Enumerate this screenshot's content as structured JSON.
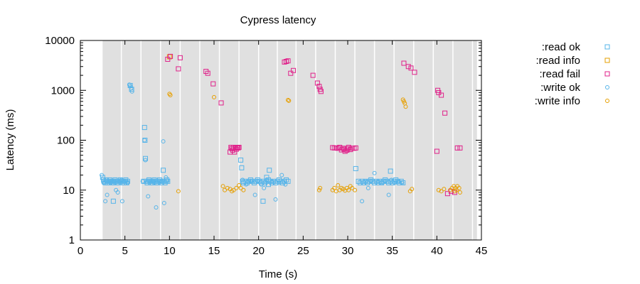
{
  "chart_data": {
    "type": "scatter",
    "title": "Cypress latency",
    "xlabel": "Time (s)",
    "ylabel": "Latency (ms)",
    "xlim": [
      0,
      45
    ],
    "ylim": [
      1,
      10000
    ],
    "yscale": "log",
    "grid": false,
    "legend_position": "outside-right",
    "x_ticks": [
      "0",
      "5",
      "10",
      "15",
      "20",
      "25",
      "30",
      "35",
      "40",
      "45"
    ],
    "y_ticks": [
      "1",
      "10",
      "100",
      "1000",
      "10000"
    ],
    "colors": {
      "ok": "#56b4e9",
      "info": "#e69f00",
      "fail": "#e0218a",
      "band": "#e0e0e0",
      "band_separator": "#ffffff"
    },
    "nemesis_windows": [
      [
        2.5,
        44.5
      ]
    ],
    "nemesis_separators": [
      4.6,
      6.8,
      9.0,
      11.2,
      13.4,
      15.6,
      17.8,
      20.0,
      22.1,
      24.2,
      26.4,
      28.6,
      30.8,
      33.0,
      35.2,
      37.4,
      39.6,
      41.8,
      44.0
    ],
    "series": [
      {
        "name": ":read ok",
        "marker": "square",
        "color": "#56b4e9",
        "points": [
          [
            2.5,
            18
          ],
          [
            2.6,
            16
          ],
          [
            2.7,
            15
          ],
          [
            2.8,
            14
          ],
          [
            2.9,
            16
          ],
          [
            3.0,
            15
          ],
          [
            3.1,
            14
          ],
          [
            3.2,
            15
          ],
          [
            3.3,
            16
          ],
          [
            3.4,
            15
          ],
          [
            3.5,
            14
          ],
          [
            3.6,
            15
          ],
          [
            3.7,
            14
          ],
          [
            3.8,
            15
          ],
          [
            3.9,
            16
          ],
          [
            4.0,
            15
          ],
          [
            4.1,
            14
          ],
          [
            4.2,
            15
          ],
          [
            4.3,
            14
          ],
          [
            4.4,
            15
          ],
          [
            4.5,
            16
          ],
          [
            4.6,
            15
          ],
          [
            4.7,
            14
          ],
          [
            4.8,
            15
          ],
          [
            4.9,
            14
          ],
          [
            5.0,
            15
          ],
          [
            5.1,
            16
          ],
          [
            5.2,
            14
          ],
          [
            5.3,
            15
          ],
          [
            3.7,
            6
          ],
          [
            5.6,
            1250
          ],
          [
            5.75,
            1050
          ],
          [
            7.1,
            15
          ],
          [
            7.2,
            180
          ],
          [
            7.25,
            100
          ],
          [
            7.3,
            43
          ],
          [
            7.4,
            15
          ],
          [
            7.5,
            14
          ],
          [
            7.6,
            15
          ],
          [
            7.7,
            16
          ],
          [
            7.8,
            15
          ],
          [
            7.9,
            14
          ],
          [
            8.0,
            15
          ],
          [
            8.1,
            14
          ],
          [
            8.2,
            15
          ],
          [
            8.3,
            16
          ],
          [
            8.4,
            15
          ],
          [
            8.5,
            14
          ],
          [
            8.6,
            15
          ],
          [
            8.7,
            14
          ],
          [
            8.8,
            15
          ],
          [
            8.9,
            16
          ],
          [
            9.0,
            15
          ],
          [
            9.1,
            14
          ],
          [
            9.2,
            15
          ],
          [
            9.3,
            25
          ],
          [
            9.4,
            15
          ],
          [
            9.5,
            14
          ],
          [
            9.6,
            15
          ],
          [
            9.7,
            16
          ],
          [
            9.8,
            15
          ],
          [
            18.0,
            40
          ],
          [
            18.1,
            28
          ],
          [
            18.2,
            15
          ],
          [
            18.3,
            14
          ],
          [
            18.5,
            15
          ],
          [
            18.7,
            14
          ],
          [
            18.9,
            15
          ],
          [
            19.1,
            16
          ],
          [
            19.3,
            15
          ],
          [
            19.5,
            14
          ],
          [
            19.7,
            15
          ],
          [
            19.9,
            16
          ],
          [
            20.1,
            15
          ],
          [
            20.3,
            14
          ],
          [
            20.5,
            15
          ],
          [
            20.7,
            14
          ],
          [
            20.9,
            15
          ],
          [
            21.1,
            16
          ],
          [
            21.3,
            15
          ],
          [
            21.5,
            14
          ],
          [
            21.7,
            15
          ],
          [
            21.9,
            14
          ],
          [
            22.1,
            15
          ],
          [
            22.3,
            16
          ],
          [
            22.5,
            15
          ],
          [
            22.7,
            14
          ],
          [
            22.9,
            15
          ],
          [
            23.1,
            16
          ],
          [
            23.3,
            15
          ],
          [
            20.5,
            6
          ],
          [
            21.2,
            25
          ],
          [
            20.9,
            18
          ],
          [
            21.1,
            13
          ],
          [
            30.9,
            27
          ],
          [
            31.2,
            15
          ],
          [
            31.4,
            14
          ],
          [
            31.6,
            15
          ],
          [
            31.8,
            14
          ],
          [
            32.0,
            15
          ],
          [
            32.2,
            14
          ],
          [
            32.4,
            15
          ],
          [
            32.6,
            16
          ],
          [
            32.8,
            15
          ],
          [
            33.0,
            14
          ],
          [
            33.2,
            15
          ],
          [
            33.4,
            14
          ],
          [
            33.6,
            15
          ],
          [
            33.8,
            14
          ],
          [
            34.0,
            15
          ],
          [
            34.2,
            16
          ],
          [
            34.4,
            15
          ],
          [
            34.6,
            14
          ],
          [
            34.8,
            15
          ],
          [
            35.0,
            14
          ],
          [
            35.2,
            15
          ],
          [
            35.4,
            16
          ],
          [
            35.6,
            15
          ],
          [
            35.8,
            14
          ],
          [
            36.0,
            15
          ],
          [
            36.2,
            14
          ],
          [
            34.8,
            24
          ]
        ]
      },
      {
        "name": ":read info",
        "marker": "square",
        "color": "#e69f00",
        "points": [
          [
            10.0,
            4700
          ]
        ]
      },
      {
        "name": ":read fail",
        "marker": "square",
        "color": "#e0218a",
        "points": [
          [
            9.8,
            4200
          ],
          [
            10.1,
            4800
          ],
          [
            11.0,
            2700
          ],
          [
            11.2,
            4500
          ],
          [
            14.1,
            2400
          ],
          [
            14.3,
            2200
          ],
          [
            14.9,
            1350
          ],
          [
            15.8,
            560
          ],
          [
            16.8,
            58
          ],
          [
            16.9,
            72
          ],
          [
            17.0,
            68
          ],
          [
            17.1,
            63
          ],
          [
            17.2,
            72
          ],
          [
            17.3,
            58
          ],
          [
            17.4,
            70
          ],
          [
            17.5,
            66
          ],
          [
            17.6,
            72
          ],
          [
            17.7,
            70
          ],
          [
            17.8,
            72
          ],
          [
            22.9,
            3700
          ],
          [
            23.1,
            3800
          ],
          [
            23.3,
            3900
          ],
          [
            23.6,
            2200
          ],
          [
            23.9,
            2500
          ],
          [
            26.1,
            2000
          ],
          [
            26.6,
            1400
          ],
          [
            26.8,
            1200
          ],
          [
            26.9,
            1050
          ],
          [
            27.0,
            950
          ],
          [
            28.3,
            71
          ],
          [
            28.5,
            70
          ],
          [
            28.7,
            70
          ],
          [
            28.9,
            69
          ],
          [
            29.1,
            72
          ],
          [
            29.3,
            64
          ],
          [
            29.5,
            69
          ],
          [
            29.7,
            60
          ],
          [
            29.9,
            63
          ],
          [
            30.1,
            72
          ],
          [
            30.3,
            65
          ],
          [
            30.5,
            69
          ],
          [
            30.7,
            69
          ],
          [
            30.9,
            70
          ],
          [
            30.0,
            68
          ],
          [
            29.6,
            66
          ],
          [
            36.3,
            3500
          ],
          [
            36.8,
            3000
          ],
          [
            37.1,
            2800
          ],
          [
            37.5,
            2300
          ],
          [
            40.1,
            1000
          ],
          [
            40.2,
            900
          ],
          [
            40.5,
            800
          ],
          [
            40.9,
            350
          ],
          [
            40.0,
            60
          ],
          [
            41.2,
            8.5
          ],
          [
            41.6,
            9.5
          ],
          [
            42.0,
            9
          ],
          [
            42.3,
            70
          ],
          [
            42.6,
            70
          ]
        ]
      },
      {
        "name": ":write ok",
        "marker": "circle",
        "color": "#56b4e9",
        "points": [
          [
            2.4,
            20
          ],
          [
            2.6,
            14
          ],
          [
            2.8,
            6
          ],
          [
            3.0,
            8
          ],
          [
            3.2,
            15
          ],
          [
            3.4,
            14
          ],
          [
            3.6,
            15
          ],
          [
            3.8,
            15
          ],
          [
            4.0,
            10
          ],
          [
            4.2,
            9
          ],
          [
            4.4,
            15
          ],
          [
            4.6,
            16
          ],
          [
            4.9,
            15
          ],
          [
            5.1,
            15
          ],
          [
            5.3,
            14
          ],
          [
            4.7,
            6
          ],
          [
            5.5,
            1300
          ],
          [
            5.6,
            1200
          ],
          [
            5.7,
            1100
          ],
          [
            5.8,
            950
          ],
          [
            7.0,
            15
          ],
          [
            7.2,
            100
          ],
          [
            7.3,
            40
          ],
          [
            7.6,
            7.5
          ],
          [
            7.9,
            15
          ],
          [
            8.2,
            15
          ],
          [
            8.5,
            4.5
          ],
          [
            9.1,
            15
          ],
          [
            9.3,
            95
          ],
          [
            9.4,
            5.5
          ],
          [
            9.6,
            18
          ],
          [
            18.2,
            16
          ],
          [
            18.6,
            13
          ],
          [
            18.9,
            15
          ],
          [
            19.2,
            15
          ],
          [
            19.6,
            8
          ],
          [
            19.9,
            15
          ],
          [
            20.3,
            13
          ],
          [
            20.6,
            11
          ],
          [
            20.9,
            16
          ],
          [
            21.5,
            15
          ],
          [
            21.9,
            6.5
          ],
          [
            22.3,
            14
          ],
          [
            22.6,
            20
          ],
          [
            23.0,
            13
          ],
          [
            31.6,
            6
          ],
          [
            32.0,
            15
          ],
          [
            32.3,
            11
          ],
          [
            32.6,
            15
          ],
          [
            33.0,
            22
          ],
          [
            33.4,
            15
          ],
          [
            33.8,
            14
          ],
          [
            34.2,
            15
          ],
          [
            34.6,
            8
          ],
          [
            34.9,
            16
          ],
          [
            35.3,
            14
          ],
          [
            35.7,
            15
          ],
          [
            36.1,
            14
          ]
        ]
      },
      {
        "name": ":write info",
        "marker": "circle",
        "color": "#e69f00",
        "points": [
          [
            10.0,
            850
          ],
          [
            10.1,
            800
          ],
          [
            11.0,
            9.5
          ],
          [
            15.0,
            730
          ],
          [
            16.0,
            12
          ],
          [
            16.2,
            10
          ],
          [
            16.5,
            11
          ],
          [
            16.8,
            10.5
          ],
          [
            17.0,
            9.5
          ],
          [
            17.2,
            10
          ],
          [
            17.5,
            11
          ],
          [
            17.8,
            12.5
          ],
          [
            18.0,
            11
          ],
          [
            18.3,
            10
          ],
          [
            23.3,
            640
          ],
          [
            23.4,
            620
          ],
          [
            26.8,
            10
          ],
          [
            26.9,
            11
          ],
          [
            28.3,
            10
          ],
          [
            28.5,
            11
          ],
          [
            28.7,
            9.5
          ],
          [
            28.9,
            12.5
          ],
          [
            29.1,
            10
          ],
          [
            29.3,
            11
          ],
          [
            29.5,
            10.5
          ],
          [
            29.7,
            9.8
          ],
          [
            29.9,
            11
          ],
          [
            30.1,
            10
          ],
          [
            30.3,
            12
          ],
          [
            30.5,
            11
          ],
          [
            30.8,
            10
          ],
          [
            36.2,
            650
          ],
          [
            36.3,
            600
          ],
          [
            36.4,
            550
          ],
          [
            36.5,
            470
          ],
          [
            37.0,
            9.5
          ],
          [
            37.2,
            10.5
          ],
          [
            40.2,
            10
          ],
          [
            40.5,
            9.5
          ],
          [
            40.8,
            10.5
          ],
          [
            41.5,
            10
          ],
          [
            41.7,
            11
          ],
          [
            41.9,
            12
          ],
          [
            42.0,
            9.5
          ],
          [
            42.1,
            11
          ],
          [
            42.2,
            10
          ],
          [
            42.3,
            12
          ],
          [
            42.5,
            11
          ],
          [
            42.6,
            9
          ]
        ]
      }
    ]
  }
}
